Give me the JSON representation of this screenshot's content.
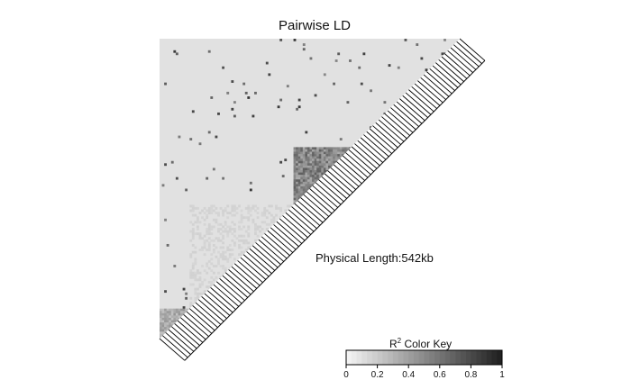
{
  "chart_data": {
    "type": "heatmap",
    "title": "Pairwise LD",
    "annotation": "Physical Length:542kb",
    "color_key": {
      "label_base": "R",
      "label_sup": "2",
      "label_rest": " Color Key",
      "ticks": [
        "0",
        "0.2",
        "0.4",
        "0.6",
        "0.8",
        "1"
      ],
      "tick_values": [
        0,
        0.2,
        0.4,
        0.6,
        0.8,
        1
      ],
      "range": [
        0,
        1
      ],
      "color_low": "#f2f2f2",
      "color_high": "#222222"
    },
    "n_markers": 130,
    "ld_blocks": [
      {
        "from": 0.0,
        "to": 0.36,
        "r2": 0.08
      },
      {
        "from": 0.36,
        "to": 0.55,
        "r2": 0.62
      },
      {
        "from": 0.55,
        "to": 0.9,
        "r2": 0.14
      },
      {
        "from": 0.9,
        "to": 1.0,
        "r2": 0.4
      }
    ],
    "background_r2": 0.08
  }
}
